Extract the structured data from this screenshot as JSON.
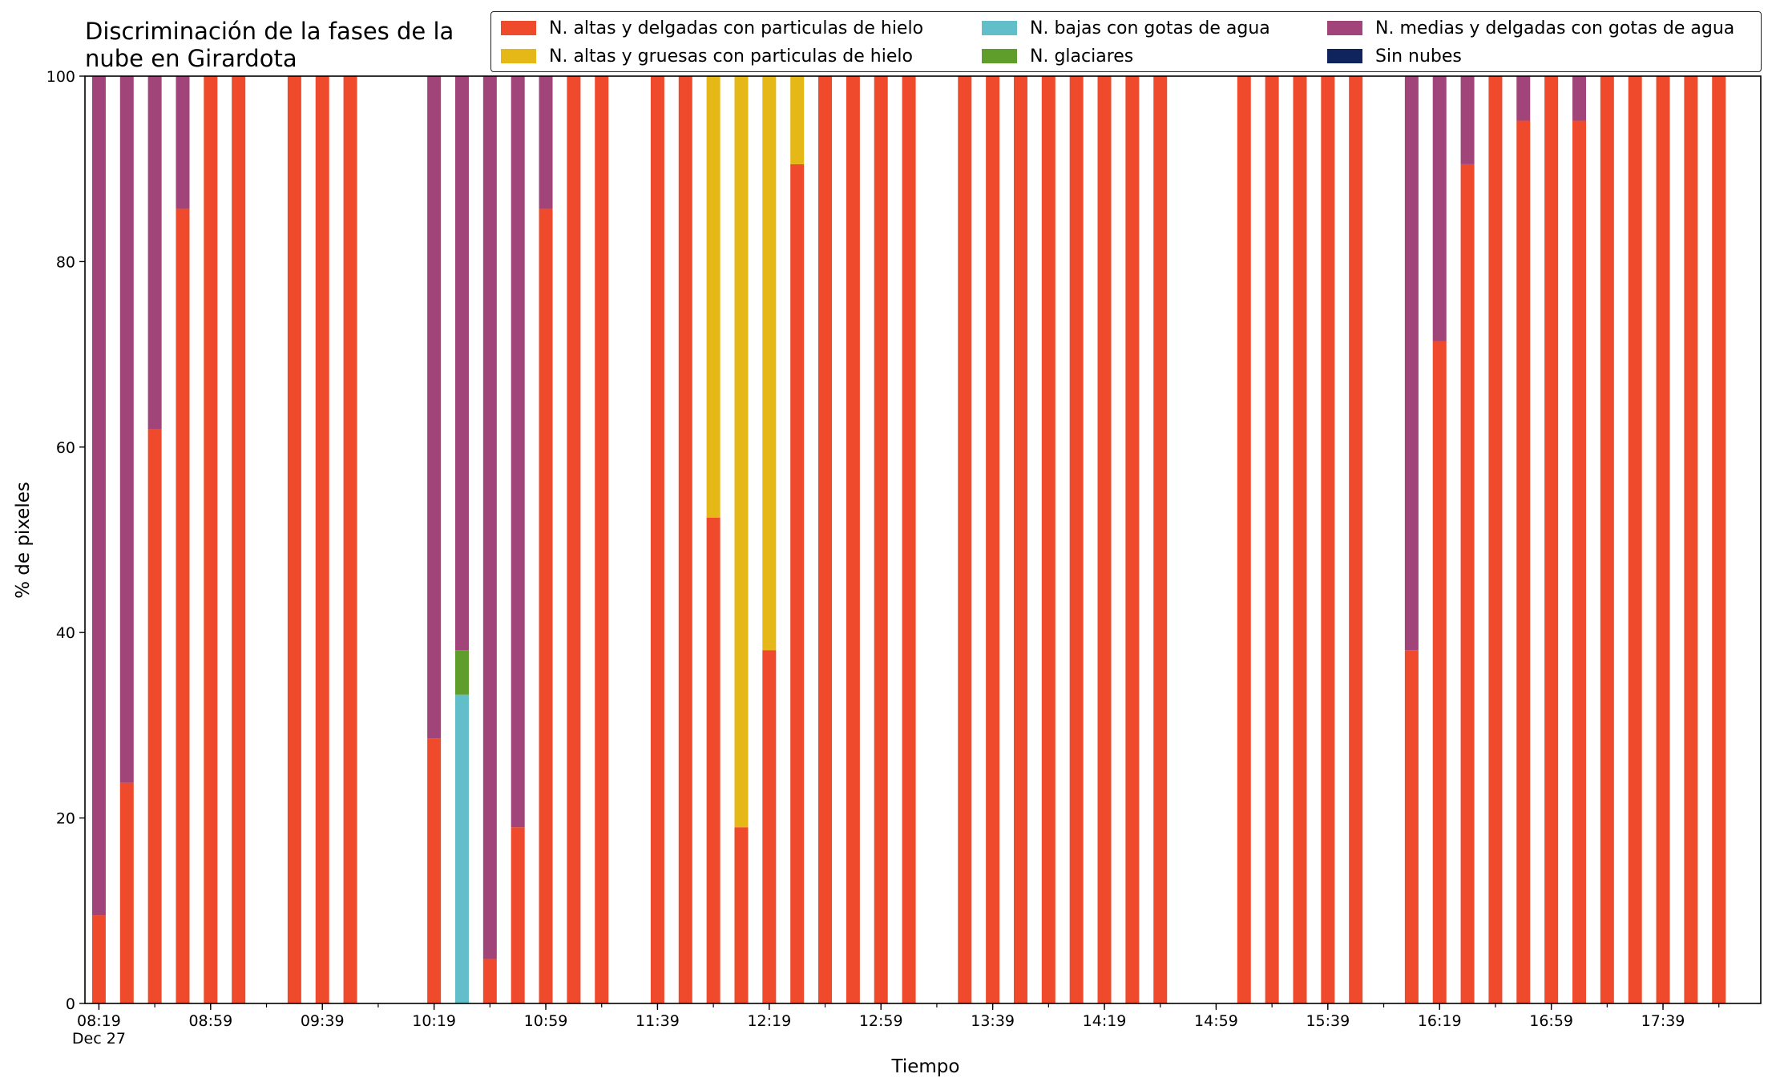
{
  "chart_data": {
    "type": "bar",
    "stacked": true,
    "title": "Discriminación de la fases de la\nnube en Girardota",
    "xlabel": "Tiempo",
    "ylabel": "% de pixeles",
    "ylim": [
      0,
      100
    ],
    "yticks": [
      0,
      20,
      40,
      60,
      80,
      100
    ],
    "xlim": [
      "08:14",
      "18:14"
    ],
    "x_date_label": "Dec 27",
    "xtick_labels": [
      "08:19",
      "08:59",
      "09:39",
      "10:19",
      "10:59",
      "11:39",
      "12:19",
      "12:59",
      "13:39",
      "14:19",
      "14:59",
      "15:39",
      "16:19",
      "16:59",
      "17:39"
    ],
    "grid": false,
    "legend_position": "top-right",
    "legend_columns": 3,
    "series": [
      {
        "name": "N. altas y delgadas con particulas de hielo",
        "color": "#ee4a2b"
      },
      {
        "name": "N. altas y gruesas con particulas de hielo",
        "color": "#e5b817"
      },
      {
        "name": "N. bajas con gotas de agua",
        "color": "#62bec9"
      },
      {
        "name": "N. glaciares",
        "color": "#5f9e2a"
      },
      {
        "name": "N. medias y delgadas con gotas de agua",
        "color": "#a1447a"
      },
      {
        "name": "Sin nubes",
        "color": "#0f245c"
      }
    ],
    "bars": [
      {
        "time": "08:19",
        "values": [
          9.5,
          0,
          0,
          0,
          90.5,
          0
        ]
      },
      {
        "time": "08:29",
        "values": [
          23.8,
          0,
          0,
          0,
          76.2,
          0
        ]
      },
      {
        "time": "08:39",
        "values": [
          61.9,
          0,
          0,
          0,
          38.1,
          0
        ]
      },
      {
        "time": "08:49",
        "values": [
          85.7,
          0,
          0,
          0,
          14.3,
          0
        ]
      },
      {
        "time": "08:59",
        "values": [
          100,
          0,
          0,
          0,
          0,
          0
        ]
      },
      {
        "time": "09:09",
        "values": [
          100,
          0,
          0,
          0,
          0,
          0
        ]
      },
      {
        "time": "09:29",
        "values": [
          100,
          0,
          0,
          0,
          0,
          0
        ]
      },
      {
        "time": "09:39",
        "values": [
          100,
          0,
          0,
          0,
          0,
          0
        ]
      },
      {
        "time": "09:49",
        "values": [
          100,
          0,
          0,
          0,
          0,
          0
        ]
      },
      {
        "time": "10:19",
        "values": [
          28.6,
          0,
          0,
          0,
          71.4,
          0
        ]
      },
      {
        "time": "10:29",
        "values": [
          0,
          0,
          33.3,
          4.8,
          61.9,
          0
        ]
      },
      {
        "time": "10:39",
        "values": [
          4.8,
          0,
          0,
          0,
          95.2,
          0
        ]
      },
      {
        "time": "10:49",
        "values": [
          19.0,
          0,
          0,
          0,
          81.0,
          0
        ]
      },
      {
        "time": "10:59",
        "values": [
          85.7,
          0,
          0,
          0,
          14.3,
          0
        ]
      },
      {
        "time": "11:09",
        "values": [
          100,
          0,
          0,
          0,
          0,
          0
        ]
      },
      {
        "time": "11:19",
        "values": [
          100,
          0,
          0,
          0,
          0,
          0
        ]
      },
      {
        "time": "11:39",
        "values": [
          100,
          0,
          0,
          0,
          0,
          0
        ]
      },
      {
        "time": "11:49",
        "values": [
          100,
          0,
          0,
          0,
          0,
          0
        ]
      },
      {
        "time": "11:59",
        "values": [
          52.4,
          47.6,
          0,
          0,
          0,
          0
        ]
      },
      {
        "time": "12:09",
        "values": [
          19.0,
          81.0,
          0,
          0,
          0,
          0
        ]
      },
      {
        "time": "12:19",
        "values": [
          38.1,
          61.9,
          0,
          0,
          0,
          0
        ]
      },
      {
        "time": "12:29",
        "values": [
          90.5,
          9.5,
          0,
          0,
          0,
          0
        ]
      },
      {
        "time": "12:39",
        "values": [
          100,
          0,
          0,
          0,
          0,
          0
        ]
      },
      {
        "time": "12:49",
        "values": [
          100,
          0,
          0,
          0,
          0,
          0
        ]
      },
      {
        "time": "12:59",
        "values": [
          100,
          0,
          0,
          0,
          0,
          0
        ]
      },
      {
        "time": "13:09",
        "values": [
          100,
          0,
          0,
          0,
          0,
          0
        ]
      },
      {
        "time": "13:29",
        "values": [
          100,
          0,
          0,
          0,
          0,
          0
        ]
      },
      {
        "time": "13:39",
        "values": [
          100,
          0,
          0,
          0,
          0,
          0
        ]
      },
      {
        "time": "13:49",
        "values": [
          100,
          0,
          0,
          0,
          0,
          0
        ]
      },
      {
        "time": "13:59",
        "values": [
          100,
          0,
          0,
          0,
          0,
          0
        ]
      },
      {
        "time": "14:09",
        "values": [
          100,
          0,
          0,
          0,
          0,
          0
        ]
      },
      {
        "time": "14:19",
        "values": [
          100,
          0,
          0,
          0,
          0,
          0
        ]
      },
      {
        "time": "14:29",
        "values": [
          100,
          0,
          0,
          0,
          0,
          0
        ]
      },
      {
        "time": "14:39",
        "values": [
          100,
          0,
          0,
          0,
          0,
          0
        ]
      },
      {
        "time": "15:09",
        "values": [
          100,
          0,
          0,
          0,
          0,
          0
        ]
      },
      {
        "time": "15:19",
        "values": [
          100,
          0,
          0,
          0,
          0,
          0
        ]
      },
      {
        "time": "15:29",
        "values": [
          100,
          0,
          0,
          0,
          0,
          0
        ]
      },
      {
        "time": "15:39",
        "values": [
          100,
          0,
          0,
          0,
          0,
          0
        ]
      },
      {
        "time": "15:49",
        "values": [
          100,
          0,
          0,
          0,
          0,
          0
        ]
      },
      {
        "time": "16:09",
        "values": [
          38.1,
          0,
          0,
          0,
          61.9,
          0
        ]
      },
      {
        "time": "16:19",
        "values": [
          71.4,
          0,
          0,
          0,
          28.6,
          0
        ]
      },
      {
        "time": "16:29",
        "values": [
          90.5,
          0,
          0,
          0,
          9.5,
          0
        ]
      },
      {
        "time": "16:39",
        "values": [
          100,
          0,
          0,
          0,
          0,
          0
        ]
      },
      {
        "time": "16:49",
        "values": [
          95.2,
          0,
          0,
          0,
          4.8,
          0
        ]
      },
      {
        "time": "16:59",
        "values": [
          100,
          0,
          0,
          0,
          0,
          0
        ]
      },
      {
        "time": "17:09",
        "values": [
          95.2,
          0,
          0,
          0,
          4.8,
          0
        ]
      },
      {
        "time": "17:19",
        "values": [
          100,
          0,
          0,
          0,
          0,
          0
        ]
      },
      {
        "time": "17:29",
        "values": [
          100,
          0,
          0,
          0,
          0,
          0
        ]
      },
      {
        "time": "17:39",
        "values": [
          100,
          0,
          0,
          0,
          0,
          0
        ]
      },
      {
        "time": "17:49",
        "values": [
          100,
          0,
          0,
          0,
          0,
          0
        ]
      },
      {
        "time": "17:59",
        "values": [
          100,
          0,
          0,
          0,
          0,
          0
        ]
      }
    ]
  }
}
